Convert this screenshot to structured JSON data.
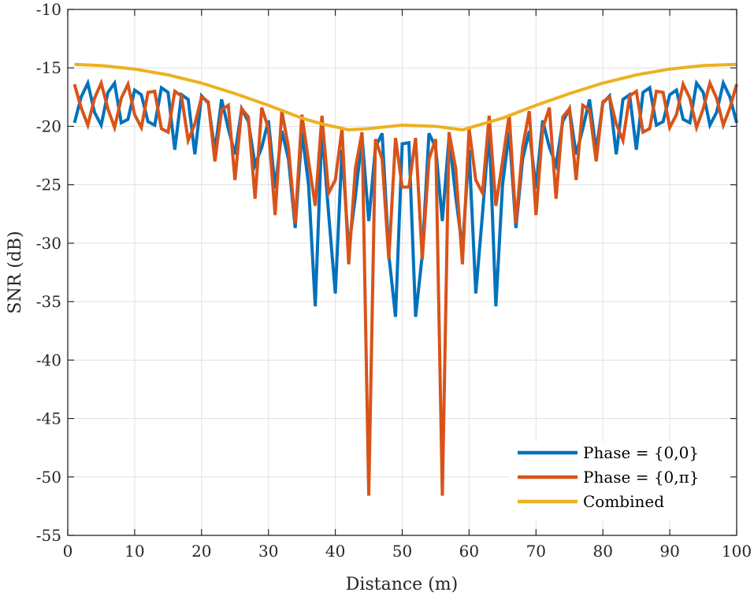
{
  "chart_data": {
    "type": "line",
    "title": "",
    "xlabel": "Distance (m)",
    "ylabel": "SNR (dB)",
    "xlim": [
      0,
      100
    ],
    "ylim": [
      -55,
      -10
    ],
    "xticks": [
      0,
      10,
      20,
      30,
      40,
      50,
      60,
      70,
      80,
      90,
      100
    ],
    "yticks": [
      -10,
      -15,
      -20,
      -25,
      -30,
      -35,
      -40,
      -45,
      -50,
      -55
    ],
    "xtick_labels": [
      "0",
      "10",
      "20",
      "30",
      "40",
      "50",
      "60",
      "70",
      "80",
      "90",
      "100"
    ],
    "ytick_labels": [
      "-10",
      "-15",
      "-20",
      "-25",
      "-30",
      "-35",
      "-40",
      "-45",
      "-50",
      "-55"
    ],
    "grid": true,
    "legend_position": "bottom-right",
    "series": [
      {
        "name": "Phase = {0,0}",
        "color": "#0072BD",
        "x": [
          1,
          2,
          3,
          4,
          5,
          6,
          7,
          8,
          9,
          10,
          11,
          12,
          13,
          14,
          15,
          16,
          17,
          18,
          19,
          20,
          21,
          22,
          23,
          24,
          25,
          26,
          27,
          28,
          29,
          30,
          31,
          32,
          33,
          34,
          35,
          36,
          37,
          38,
          39,
          40,
          41,
          42,
          43,
          44,
          45,
          46,
          47,
          48,
          49,
          50,
          51,
          52,
          53,
          54,
          55,
          56,
          57,
          58,
          59,
          60,
          61,
          62,
          63,
          64,
          65,
          66,
          67,
          68,
          69,
          70,
          71,
          72,
          73,
          74,
          75,
          76,
          77,
          78,
          79,
          80,
          81,
          82,
          83,
          84,
          85,
          86,
          87,
          88,
          89,
          90,
          91,
          92,
          93,
          94,
          95,
          96,
          97,
          98,
          99,
          100
        ],
        "values": [
          -19.7,
          -17.5,
          -16.3,
          -18.8,
          -19.9,
          -17.1,
          -16.3,
          -19.7,
          -19.4,
          -16.9,
          -17.3,
          -19.6,
          -19.9,
          -16.7,
          -17.1,
          -22.0,
          -17.3,
          -17.7,
          -22.4,
          -17.4,
          -18.0,
          -22.1,
          -17.7,
          -20.2,
          -22.4,
          -18.5,
          -19.6,
          -23.3,
          -21.8,
          -19.5,
          -25.3,
          -20.4,
          -22.8,
          -28.7,
          -20.5,
          -25.0,
          -35.4,
          -20.2,
          -27.5,
          -34.3,
          -22.0,
          -30.5,
          -26.0,
          -20.9,
          -28.1,
          -21.8,
          -20.6,
          -31.0,
          -36.3,
          -21.5,
          -21.4,
          -36.3,
          -31.0,
          -20.6,
          -21.8,
          -28.1,
          -20.9,
          -26.0,
          -30.5,
          -22.0,
          -34.3,
          -27.5,
          -20.2,
          -35.4,
          -25.0,
          -20.5,
          -28.7,
          -22.8,
          -20.4,
          -25.3,
          -19.5,
          -21.8,
          -23.3,
          -19.6,
          -18.5,
          -22.4,
          -20.2,
          -17.7,
          -22.1,
          -18.0,
          -17.4,
          -22.4,
          -17.7,
          -17.3,
          -22.0,
          -17.1,
          -16.7,
          -19.9,
          -19.6,
          -17.3,
          -16.9,
          -19.4,
          -19.7,
          -16.3,
          -17.1,
          -19.9,
          -18.8,
          -16.3,
          -17.5,
          -19.7
        ]
      },
      {
        "name": "Phase = {0,π}",
        "color": "#D95319",
        "x": [
          1,
          2,
          3,
          4,
          5,
          6,
          7,
          8,
          9,
          10,
          11,
          12,
          13,
          14,
          15,
          16,
          17,
          18,
          19,
          20,
          21,
          22,
          23,
          24,
          25,
          26,
          27,
          28,
          29,
          30,
          31,
          32,
          33,
          34,
          35,
          36,
          37,
          38,
          39,
          40,
          41,
          42,
          43,
          44,
          45,
          46,
          47,
          48,
          49,
          50,
          51,
          52,
          53,
          54,
          55,
          56,
          57,
          58,
          59,
          60,
          61,
          62,
          63,
          64,
          65,
          66,
          67,
          68,
          69,
          70,
          71,
          72,
          73,
          74,
          75,
          76,
          77,
          78,
          79,
          80,
          81,
          82,
          83,
          84,
          85,
          86,
          87,
          88,
          89,
          90,
          91,
          92,
          93,
          94,
          95,
          96,
          97,
          98,
          99,
          100
        ],
        "values": [
          -16.4,
          -18.4,
          -19.9,
          -17.6,
          -16.3,
          -18.5,
          -20.1,
          -17.6,
          -16.4,
          -19.0,
          -20.1,
          -17.1,
          -17.0,
          -20.2,
          -20.5,
          -17.0,
          -17.4,
          -21.2,
          -19.8,
          -17.5,
          -17.9,
          -23.0,
          -18.6,
          -18.2,
          -24.6,
          -18.5,
          -19.2,
          -26.2,
          -18.4,
          -20.2,
          -27.6,
          -18.7,
          -21.8,
          -28.3,
          -19.0,
          -23.0,
          -26.8,
          -19.1,
          -25.7,
          -24.6,
          -20.2,
          -31.8,
          -23.6,
          -20.5,
          -51.6,
          -21.1,
          -22.8,
          -31.4,
          -21.0,
          -25.2,
          -25.2,
          -21.0,
          -31.4,
          -22.8,
          -21.1,
          -51.6,
          -20.5,
          -23.6,
          -31.8,
          -20.2,
          -24.6,
          -25.7,
          -19.1,
          -26.8,
          -23.0,
          -19.0,
          -28.3,
          -21.8,
          -18.7,
          -27.6,
          -20.2,
          -18.4,
          -26.2,
          -19.2,
          -18.5,
          -24.6,
          -18.2,
          -18.6,
          -23.0,
          -17.9,
          -17.5,
          -19.8,
          -21.2,
          -17.4,
          -17.0,
          -20.5,
          -20.2,
          -17.0,
          -17.1,
          -20.1,
          -19.0,
          -16.4,
          -17.6,
          -20.1,
          -18.5,
          -16.3,
          -17.6,
          -19.9,
          -18.4,
          -16.4
        ]
      },
      {
        "name": "Combined",
        "color": "#EDB120",
        "x": [
          1,
          5,
          10,
          15,
          20,
          25,
          30,
          35,
          38,
          42,
          45,
          50,
          55,
          59,
          62,
          65,
          70,
          75,
          80,
          85,
          90,
          95,
          100
        ],
        "values": [
          -14.7,
          -14.8,
          -15.1,
          -15.6,
          -16.3,
          -17.2,
          -18.2,
          -19.3,
          -19.8,
          -20.3,
          -20.2,
          -19.9,
          -20.0,
          -20.3,
          -19.8,
          -19.3,
          -18.2,
          -17.2,
          -16.3,
          -15.6,
          -15.1,
          -14.8,
          -14.7
        ]
      }
    ]
  }
}
